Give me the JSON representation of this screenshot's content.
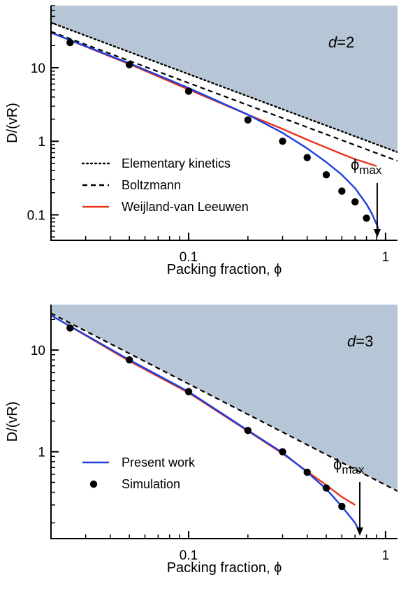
{
  "chart_data": [
    {
      "type": "line",
      "panel_label": "d=2",
      "xlabel": "Packing fraction, ϕ",
      "ylabel": "D/(vR)",
      "xscale": "log",
      "yscale": "log",
      "xlim": [
        0.02,
        1.15
      ],
      "ylim": [
        0.045,
        70
      ],
      "xticks": [
        {
          "value": 0.1,
          "label": "0.1"
        },
        {
          "value": 1,
          "label": "1"
        }
      ],
      "yticks": [
        {
          "value": 0.1,
          "label": "0.1"
        },
        {
          "value": 1,
          "label": "1"
        },
        {
          "value": 10,
          "label": "10"
        }
      ],
      "shaded_region": "above Elementary kinetics line",
      "shaded_color": "#b7c6d6",
      "series": [
        {
          "name": "Elementary kinetics",
          "style": "dotted",
          "color": "#000000",
          "x": [
            0.02,
            1.15
          ],
          "y": [
            41,
            0.71
          ]
        },
        {
          "name": "Boltzmann",
          "style": "dashed",
          "color": "#000000",
          "x": [
            0.02,
            1.15
          ],
          "y": [
            31,
            0.54
          ]
        },
        {
          "name": "Weijland-van Leeuwen",
          "style": "solid",
          "color": "#e8341c",
          "x": [
            0.02,
            0.05,
            0.1,
            0.2,
            0.3,
            0.4,
            0.5,
            0.6,
            0.7,
            0.8,
            0.9
          ],
          "y": [
            30,
            11.2,
            5.05,
            2.3,
            1.47,
            1.05,
            0.82,
            0.67,
            0.57,
            0.51,
            0.46
          ]
        },
        {
          "name": "",
          "style": "solid",
          "color": "#1d3fe0",
          "x": [
            0.02,
            0.05,
            0.1,
            0.2,
            0.3,
            0.4,
            0.5,
            0.6,
            0.7,
            0.8,
            0.85,
            0.9,
            0.92
          ],
          "y": [
            30,
            11.5,
            5.3,
            2.3,
            1.3,
            0.8,
            0.52,
            0.35,
            0.23,
            0.14,
            0.105,
            0.075,
            0.065
          ]
        },
        {
          "name": "",
          "style": "markers",
          "color": "#000000",
          "x": [
            0.025,
            0.05,
            0.1,
            0.2,
            0.3,
            0.4,
            0.5,
            0.6,
            0.7,
            0.8
          ],
          "y": [
            22,
            11,
            4.8,
            1.95,
            1.0,
            0.6,
            0.35,
            0.21,
            0.15,
            0.09
          ]
        }
      ],
      "annotation": {
        "text": "ϕ",
        "subscript": "max",
        "x": 0.907
      }
    },
    {
      "type": "line",
      "panel_label": "d=3",
      "xlabel": "Packing fraction, ϕ",
      "ylabel": "D/(vR)",
      "xscale": "log",
      "yscale": "log",
      "xlim": [
        0.02,
        1.15
      ],
      "ylim": [
        0.14,
        28
      ],
      "xticks": [
        {
          "value": 0.1,
          "label": "0.1"
        },
        {
          "value": 1,
          "label": "1"
        }
      ],
      "yticks": [
        {
          "value": 1,
          "label": "1"
        },
        {
          "value": 10,
          "label": "10"
        }
      ],
      "shaded_region": "above Boltzmann line",
      "shaded_color": "#b7c6d6",
      "series": [
        {
          "name": "",
          "style": "dashed",
          "color": "#000000",
          "x": [
            0.02,
            1.15
          ],
          "y": [
            23,
            0.41
          ]
        },
        {
          "name": "",
          "style": "solid",
          "color": "#e8341c",
          "x": [
            0.02,
            0.05,
            0.1,
            0.2,
            0.3,
            0.4,
            0.5,
            0.6,
            0.7
          ],
          "y": [
            22,
            7.8,
            3.8,
            1.6,
            0.96,
            0.64,
            0.47,
            0.36,
            0.3
          ]
        },
        {
          "name": "Present work",
          "style": "solid",
          "color": "#1d3fe0",
          "x": [
            0.02,
            0.05,
            0.1,
            0.2,
            0.3,
            0.4,
            0.5,
            0.6,
            0.7,
            0.72
          ],
          "y": [
            22,
            8.0,
            3.9,
            1.62,
            0.98,
            0.63,
            0.43,
            0.29,
            0.2,
            0.18
          ]
        },
        {
          "name": "Simulation",
          "style": "markers",
          "color": "#000000",
          "x": [
            0.025,
            0.05,
            0.1,
            0.2,
            0.3,
            0.4,
            0.5,
            0.6
          ],
          "y": [
            16.5,
            8.0,
            3.9,
            1.62,
            1.0,
            0.63,
            0.44,
            0.29
          ]
        }
      ],
      "annotation": {
        "text": "ϕ",
        "subscript": "max",
        "x": 0.74
      }
    }
  ]
}
